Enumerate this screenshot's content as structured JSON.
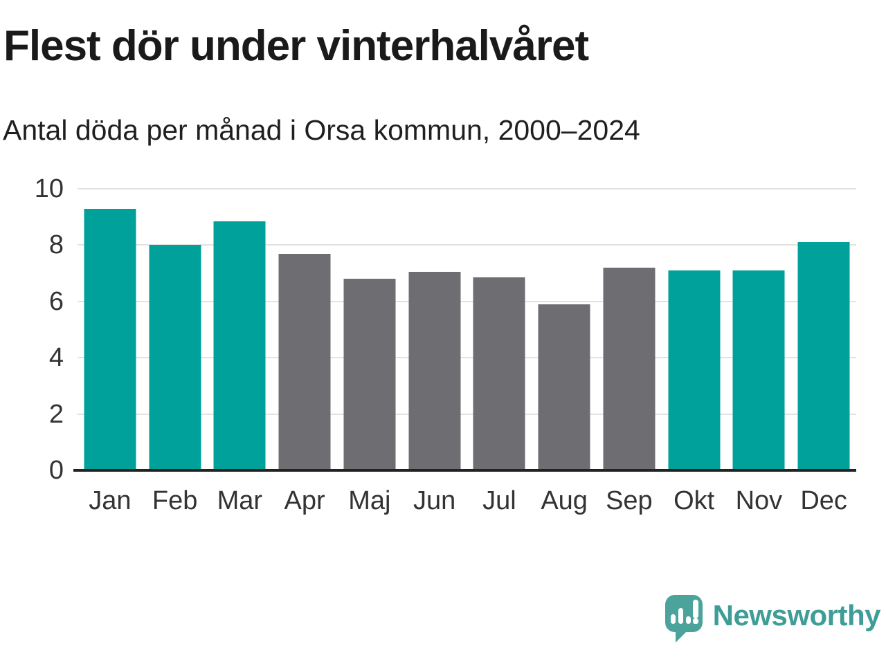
{
  "header": {
    "title": "Flest dör under vinterhalvåret",
    "subtitle": "Antal döda per månad i Orsa kommun, 2000–2024"
  },
  "chart_data": {
    "type": "bar",
    "title": "Flest dör under vinterhalvåret",
    "subtitle": "Antal döda per månad i Orsa kommun, 2000–2024",
    "categories": [
      "Jan",
      "Feb",
      "Mar",
      "Apr",
      "Maj",
      "Jun",
      "Jul",
      "Aug",
      "Sep",
      "Okt",
      "Nov",
      "Dec"
    ],
    "values": [
      9.3,
      8.0,
      8.85,
      7.7,
      6.8,
      7.05,
      6.85,
      5.9,
      7.2,
      7.1,
      7.1,
      8.1
    ],
    "highlighted": [
      true,
      true,
      true,
      false,
      false,
      false,
      false,
      false,
      false,
      true,
      true,
      true
    ],
    "xlabel": "",
    "ylabel": "",
    "ylim": [
      0,
      10
    ],
    "yticks": [
      0,
      2,
      4,
      6,
      8,
      10
    ],
    "grid": "horizontal",
    "legend": "none",
    "colors": {
      "highlight": "#00a19a",
      "muted": "#6d6d72",
      "gridline": "#e2e2e2",
      "axis": "#222222"
    }
  },
  "footer": {
    "brand": "Newsworthy",
    "logo_icon": "newsworthy-speech-bubble-barchart-icon",
    "logo_color": "#4ba39c",
    "brand_text_color": "#3f9d97"
  }
}
